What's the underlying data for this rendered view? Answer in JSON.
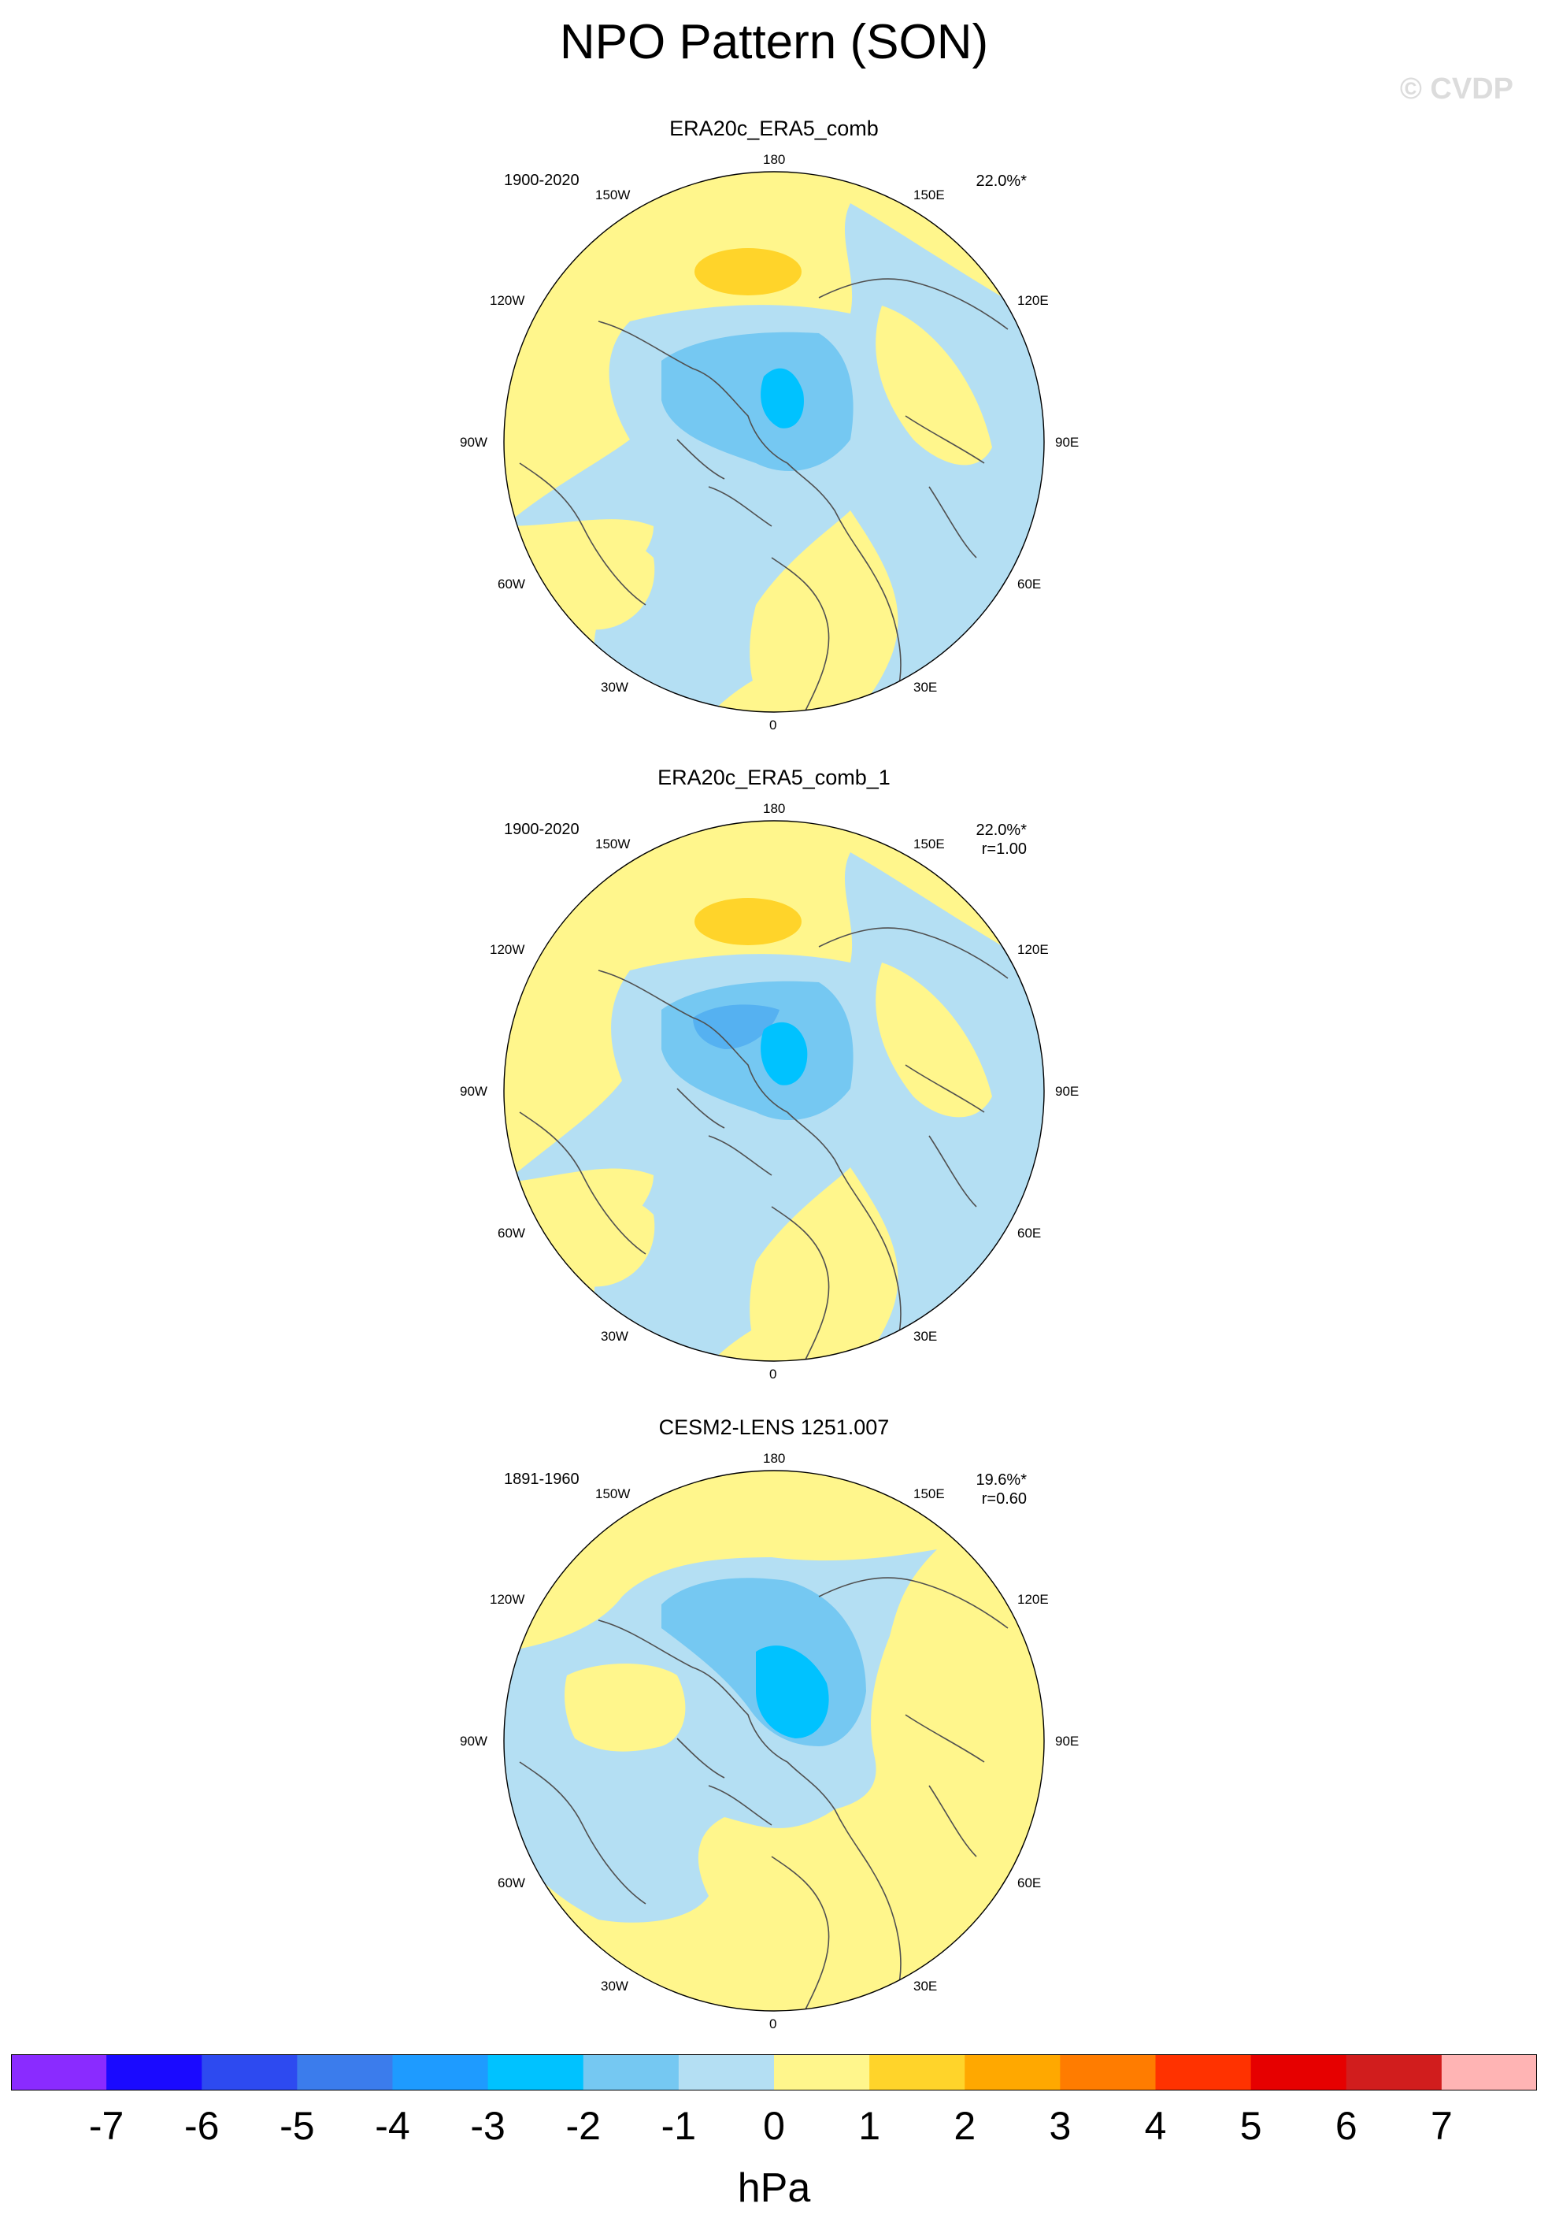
{
  "figure": {
    "title": "NPO Pattern (SON)",
    "watermark": "© CVDP",
    "units": "hPa"
  },
  "colors": {
    "palette": [
      "#8a2bff",
      "#1a0aff",
      "#2d4af0",
      "#3b7cec",
      "#1e9bff",
      "#00c2ff",
      "#75c8f2",
      "#b4dff3",
      "#fff68c",
      "#ffd42a",
      "#ffa800",
      "#ff7c00",
      "#ff3200",
      "#e60000",
      "#d11d1d",
      "#ffb4b4"
    ],
    "land_outline": "#505050",
    "frame": "#000000"
  },
  "longitude_labels": [
    "180",
    "150E",
    "120E",
    "90E",
    "60E",
    "30E",
    "0",
    "30W",
    "60W",
    "90W",
    "120W",
    "150W"
  ],
  "panels": [
    {
      "title": "ERA20c_ERA5_comb",
      "period": "1900-2020",
      "pct": "22.0%*",
      "r": ""
    },
    {
      "title": "ERA20c_ERA5_comb_1",
      "period": "1900-2020",
      "pct": "22.0%*",
      "r": "r=1.00"
    },
    {
      "title": "CESM2-LENS 1251.007",
      "period": "1891-1960",
      "pct": "19.6%*",
      "r": "r=0.60"
    }
  ],
  "colorbar": {
    "ticks": [
      "-7",
      "-6",
      "-5",
      "-4",
      "-3",
      "-2",
      "-1",
      "0",
      "1",
      "2",
      "3",
      "4",
      "5",
      "6",
      "7"
    ]
  }
}
